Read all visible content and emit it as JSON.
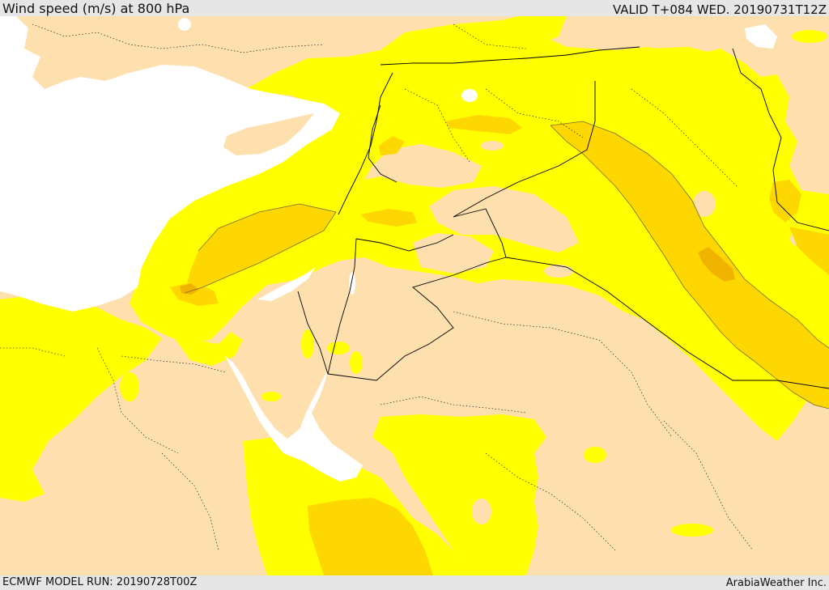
{
  "header": {
    "title": "Wind speed (m/s) at 800 hPa",
    "valid": "VALID T+084 WED. 20190731T12Z"
  },
  "footer": {
    "model_run": "ECMWF MODEL RUN: 20190728T00Z",
    "credit": "ArabiaWeather Inc."
  },
  "map": {
    "colors": {
      "land_calm": "#fde0ad",
      "wind_band_1": "#ffff00",
      "wind_band_2": "#ffd700",
      "wind_band_3": "#f0b400",
      "water": "#ffffff",
      "border": "#000000",
      "contour": "#7a6a2a"
    }
  }
}
